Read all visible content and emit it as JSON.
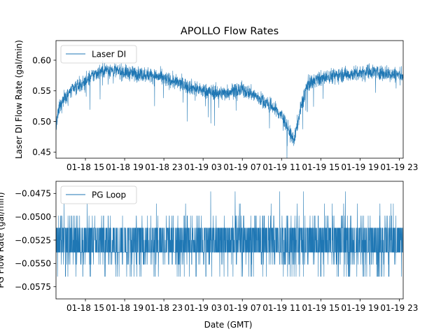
{
  "chart_data": [
    {
      "type": "line",
      "title": "APOLLO Flow Rates",
      "xlabel": "",
      "ylabel": "Laser DI Flow Rate (gal/min)",
      "series": [
        {
          "name": "Laser DI",
          "color": "#1f77b4"
        }
      ],
      "legend_position": "top-left",
      "x_ticks": [
        "01-18 15",
        "01-18 19",
        "01-18 23",
        "01-19 03",
        "01-19 07",
        "01-19 11",
        "01-19 15",
        "01-19 19",
        "01-19 23"
      ],
      "y_ticks": [
        0.45,
        0.5,
        0.55,
        0.6
      ],
      "y_tick_labels": [
        "0.45",
        "0.50",
        "0.55",
        "0.60"
      ],
      "ylim": [
        0.44,
        0.632
      ],
      "x_range_hours": [
        12.0,
        47.4
      ],
      "x_tick_hours": [
        15,
        19,
        23,
        27,
        31,
        35,
        39,
        43,
        47
      ],
      "trend": {
        "hours": [
          12.0,
          12.3,
          12.7,
          13.2,
          14.0,
          15.0,
          16.0,
          17.0,
          18.0,
          19.0,
          20.0,
          21.0,
          22.0,
          23.0,
          24.0,
          25.0,
          26.0,
          27.0,
          28.0,
          29.0,
          30.0,
          31.0,
          32.0,
          33.0,
          34.0,
          35.0,
          35.5,
          36.0,
          36.3,
          36.6,
          37.0,
          37.5,
          38.0,
          39.0,
          40.0,
          41.0,
          42.0,
          43.0,
          44.0,
          45.0,
          46.0,
          47.4
        ],
        "values": [
          0.49,
          0.52,
          0.535,
          0.545,
          0.555,
          0.565,
          0.578,
          0.585,
          0.583,
          0.58,
          0.578,
          0.577,
          0.575,
          0.57,
          0.565,
          0.56,
          0.555,
          0.55,
          0.548,
          0.546,
          0.55,
          0.552,
          0.545,
          0.535,
          0.525,
          0.51,
          0.495,
          0.475,
          0.47,
          0.495,
          0.525,
          0.555,
          0.565,
          0.57,
          0.574,
          0.577,
          0.577,
          0.58,
          0.582,
          0.58,
          0.578,
          0.575
        ],
        "noise": 0.012
      }
    },
    {
      "type": "line",
      "title": "",
      "xlabel": "Date (GMT)",
      "ylabel": "PG Flow Rate (gal/min)",
      "series": [
        {
          "name": "PG Loop",
          "color": "#1f77b4"
        }
      ],
      "legend_position": "top-left",
      "x_ticks": [
        "01-18 15",
        "01-18 19",
        "01-18 23",
        "01-19 03",
        "01-19 07",
        "01-19 11",
        "01-19 15",
        "01-19 19",
        "01-19 23"
      ],
      "y_ticks": [
        -0.0575,
        -0.055,
        -0.0525,
        -0.05,
        -0.0475
      ],
      "y_tick_labels": [
        "−0.0575",
        "−0.0550",
        "−0.0525",
        "−0.0500",
        "−0.0475"
      ],
      "ylim": [
        -0.0588,
        -0.0462
      ],
      "x_range_hours": [
        12.0,
        47.4
      ],
      "x_tick_hours": [
        15,
        19,
        23,
        27,
        31,
        35,
        39,
        43,
        47
      ],
      "levels": [
        -0.0564,
        -0.0551,
        -0.0538,
        -0.0525,
        -0.0512,
        -0.0499,
        -0.0486,
        -0.0473
      ],
      "level_weights": [
        0.03,
        0.06,
        0.42,
        0.08,
        0.36,
        0.04,
        0.008,
        0.002
      ]
    }
  ]
}
